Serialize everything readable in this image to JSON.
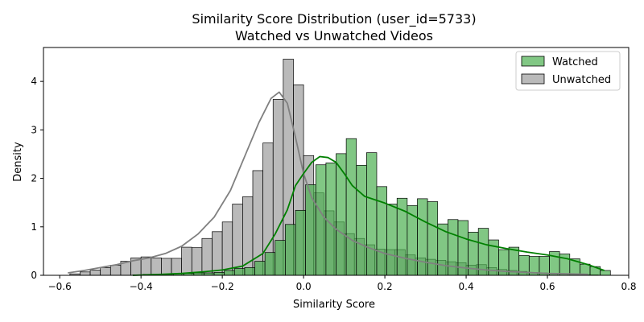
{
  "chart_data": {
    "type": "histogram",
    "title": "Similarity Score Distribution (user_id=5733)",
    "subtitle": "Watched vs Unwatched Videos",
    "xlabel": "Similarity Score",
    "ylabel": "Density",
    "xlim": [
      -0.64,
      0.8
    ],
    "ylim": [
      0,
      4.7
    ],
    "x_ticks": [
      -0.6,
      -0.4,
      -0.2,
      0.0,
      0.2,
      0.4,
      0.6,
      0.8
    ],
    "x_tick_labels": [
      "−0.6",
      "−0.4",
      "−0.2",
      "0.0",
      "0.2",
      "0.4",
      "0.6",
      "0.8"
    ],
    "y_ticks": [
      0,
      1,
      2,
      3,
      4
    ],
    "y_tick_labels": [
      "0",
      "1",
      "2",
      "3",
      "4"
    ],
    "grid": false,
    "legend": "top-right",
    "series": [
      {
        "name": "Unwatched",
        "color": "#a9a9a9",
        "kde_color": "#808080",
        "bin_start": -0.575,
        "bin_width": 0.025,
        "values": [
          0.03,
          0.07,
          0.11,
          0.16,
          0.21,
          0.29,
          0.36,
          0.38,
          0.36,
          0.35,
          0.35,
          0.58,
          0.57,
          0.76,
          0.9,
          1.1,
          1.47,
          1.62,
          2.16,
          2.73,
          3.63,
          4.46,
          3.93,
          2.47,
          1.7,
          1.33,
          1.1,
          0.86,
          0.76,
          0.63,
          0.54,
          0.53,
          0.53,
          0.42,
          0.36,
          0.33,
          0.31,
          0.28,
          0.26,
          0.21,
          0.22,
          0.16,
          0.12,
          0.1,
          0.08,
          0.06,
          0.05,
          0.03,
          0.03,
          0.02,
          0.02,
          0.01
        ],
        "kde_x": [
          -0.58,
          -0.54,
          -0.5,
          -0.46,
          -0.42,
          -0.38,
          -0.34,
          -0.3,
          -0.26,
          -0.22,
          -0.18,
          -0.14,
          -0.11,
          -0.08,
          -0.06,
          -0.04,
          -0.02,
          0.0,
          0.02,
          0.05,
          0.08,
          0.12,
          0.16,
          0.2,
          0.25,
          0.3,
          0.35,
          0.4,
          0.45,
          0.5,
          0.55,
          0.6,
          0.65,
          0.7
        ],
        "kde_y": [
          0.05,
          0.1,
          0.16,
          0.22,
          0.3,
          0.36,
          0.45,
          0.6,
          0.85,
          1.2,
          1.75,
          2.55,
          3.15,
          3.65,
          3.78,
          3.55,
          2.85,
          2.1,
          1.6,
          1.2,
          0.95,
          0.72,
          0.57,
          0.45,
          0.35,
          0.27,
          0.2,
          0.15,
          0.11,
          0.08,
          0.06,
          0.04,
          0.03,
          0.02
        ]
      },
      {
        "name": "Watched",
        "color": "#4caf50",
        "kde_color": "#008000",
        "bin_start": -0.42,
        "bin_width": 0.025,
        "values": [
          0.01,
          0.02,
          0.02,
          0.02,
          0.03,
          0.04,
          0.05,
          0.05,
          0.06,
          0.1,
          0.14,
          0.16,
          0.29,
          0.47,
          0.72,
          1.05,
          1.34,
          1.87,
          2.28,
          2.32,
          2.51,
          2.82,
          2.27,
          2.53,
          1.83,
          1.47,
          1.59,
          1.44,
          1.58,
          1.52,
          1.06,
          1.15,
          1.13,
          0.89,
          0.97,
          0.73,
          0.53,
          0.58,
          0.41,
          0.39,
          0.39,
          0.49,
          0.44,
          0.34,
          0.23,
          0.18,
          0.1
        ],
        "kde_x": [
          -0.42,
          -0.35,
          -0.3,
          -0.25,
          -0.2,
          -0.15,
          -0.1,
          -0.07,
          -0.04,
          -0.02,
          0.0,
          0.02,
          0.04,
          0.06,
          0.08,
          0.1,
          0.12,
          0.15,
          0.2,
          0.25,
          0.3,
          0.35,
          0.4,
          0.45,
          0.5,
          0.55,
          0.6,
          0.65,
          0.7,
          0.74
        ],
        "kde_y": [
          0.0,
          0.02,
          0.04,
          0.07,
          0.11,
          0.19,
          0.45,
          0.85,
          1.35,
          1.85,
          2.1,
          2.33,
          2.45,
          2.43,
          2.33,
          2.1,
          1.85,
          1.63,
          1.49,
          1.32,
          1.1,
          0.9,
          0.75,
          0.63,
          0.55,
          0.48,
          0.42,
          0.34,
          0.22,
          0.1
        ]
      }
    ]
  }
}
